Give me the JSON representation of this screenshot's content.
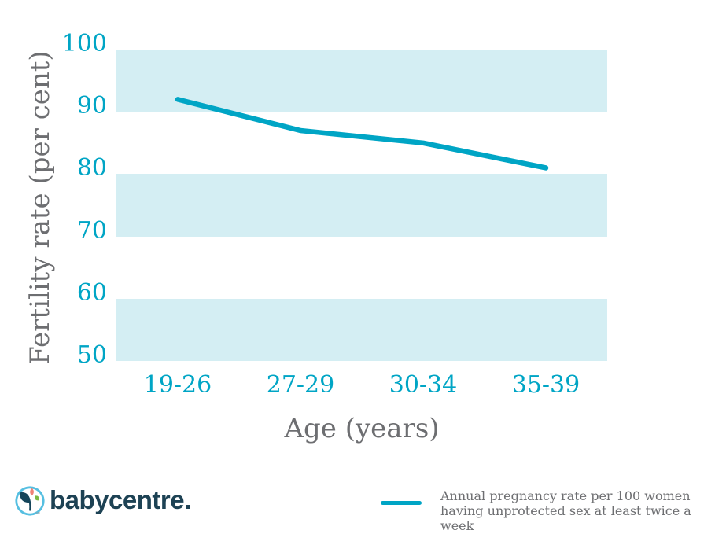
{
  "chart_data": {
    "type": "line",
    "title": "",
    "categories": [
      "19-26",
      "27-29",
      "30-34",
      "35-39"
    ],
    "values": [
      92,
      87,
      85,
      81
    ],
    "series_name": "Annual pregnancy rate per 100 women having unprotected sex at least twice a week",
    "xlabel": "Age (years)",
    "ylabel": "Fertility rate (per cent)",
    "ylim": [
      50,
      100
    ],
    "yticks": [
      "100",
      "90",
      "80",
      "70",
      "60",
      "50"
    ],
    "ytick_values": [
      100,
      90,
      80,
      70,
      60,
      50
    ],
    "bands": [
      [
        90,
        100
      ],
      [
        70,
        80
      ],
      [
        50,
        60
      ]
    ],
    "grid": "striped-bands",
    "legend_position": "bottom-right",
    "line_color": "#00a5c5",
    "band_color": "#d4eef3"
  },
  "colors": {
    "accent_teal": "#00a5c5",
    "band_fill": "#d4eef3",
    "text_gray": "#6d6e71",
    "logo_navy": "#1d4254",
    "logo_circle_blue": "#56bfe1",
    "logo_leaf_dark": "#14455a",
    "logo_leaf_coral": "#ef8276",
    "logo_leaf_green": "#7cb944"
  },
  "footer": {
    "logo_text": "babycentre",
    "logo_dot": ".",
    "trademark": "™",
    "legend_line1": "Annual pregnancy rate per 100 women",
    "legend_line2": "having unprotected sex at least twice a week"
  }
}
